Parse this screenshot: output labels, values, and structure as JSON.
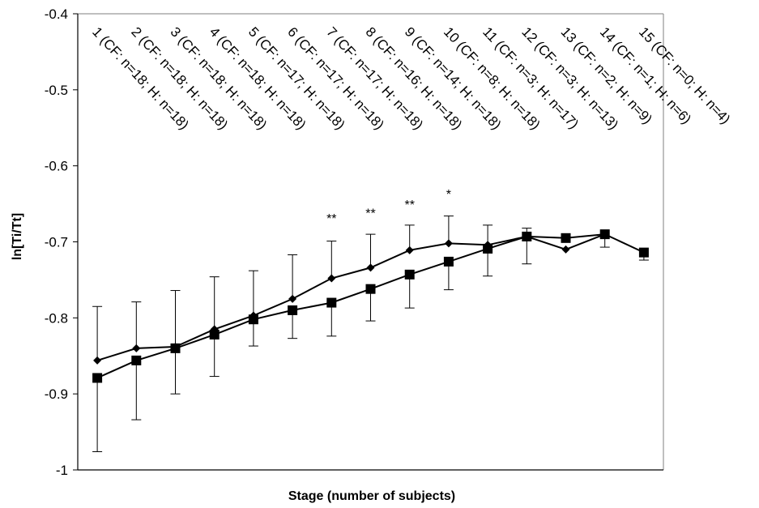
{
  "chart_data": {
    "type": "line",
    "title": "",
    "xlabel": "Stage (number of subjects)",
    "ylabel": "ln[Ti/Tt]",
    "ylim": [
      -1.0,
      -0.4
    ],
    "yticks": [
      -1,
      -0.9,
      -0.8,
      -0.7,
      -0.6,
      -0.5,
      -0.4
    ],
    "ytick_labels": [
      "-1",
      "-0.9",
      "-0.8",
      "-0.7",
      "-0.6",
      "-0.5",
      "-0.4"
    ],
    "grid": false,
    "legend": "none",
    "categories": [
      "1 (CF: n=18; H: n=18)",
      "2 (CF: n=18; H: n=18)",
      "3 (CF: n=18; H: n=18)",
      "4 (CF: n=18; H: n=18)",
      "5 (CF: n=17; H: n=18)",
      "6 (CF: n=17; H: n=18)",
      "7 (CF: n=17; H: n=18)",
      "8 (CF: n=16; H: n=18)",
      "9 (CF: n=14; H: n=18)",
      "10 (CF: n=8; H: n=18)",
      "11 (CF: n=3; H: n=17)",
      "12 (CF: n=3; H: n=13)",
      "13 (CF: n=2; H: n=9)",
      "14 (CF: n=1; H: n=6)",
      "15 (CF: n=0; H: n=4)"
    ],
    "series": [
      {
        "marker": "diamond",
        "values": [
          -0.856,
          -0.84,
          -0.838,
          -0.815,
          -0.797,
          -0.775,
          -0.748,
          -0.734,
          -0.711,
          -0.702,
          -0.704,
          -0.693,
          -0.71,
          -0.69,
          null
        ],
        "error_up": [
          0.071,
          0.061,
          0.074,
          0.069,
          0.059,
          0.058,
          0.049,
          0.044,
          0.033,
          0.036,
          0.026,
          0.011,
          0.0,
          0.0,
          null
        ]
      },
      {
        "marker": "square",
        "values": [
          -0.879,
          -0.856,
          -0.84,
          -0.822,
          -0.802,
          -0.79,
          -0.78,
          -0.762,
          -0.743,
          -0.726,
          -0.709,
          -0.693,
          -0.695,
          -0.69,
          -0.714
        ],
        "error_down": [
          0.097,
          0.078,
          0.06,
          0.055,
          0.035,
          0.037,
          0.044,
          0.042,
          0.044,
          0.037,
          0.036,
          0.036,
          0.0,
          0.017,
          0.01
        ]
      }
    ],
    "annotations": [
      {
        "category_index": 6,
        "text": "**",
        "y": -0.675
      },
      {
        "category_index": 7,
        "text": "**",
        "y": -0.668
      },
      {
        "category_index": 8,
        "text": "**",
        "y": -0.657
      },
      {
        "category_index": 9,
        "text": "*",
        "y": -0.643
      }
    ],
    "colors": {
      "line": "#000000",
      "axis": "#000000",
      "frame": "#7f7f7f"
    }
  }
}
